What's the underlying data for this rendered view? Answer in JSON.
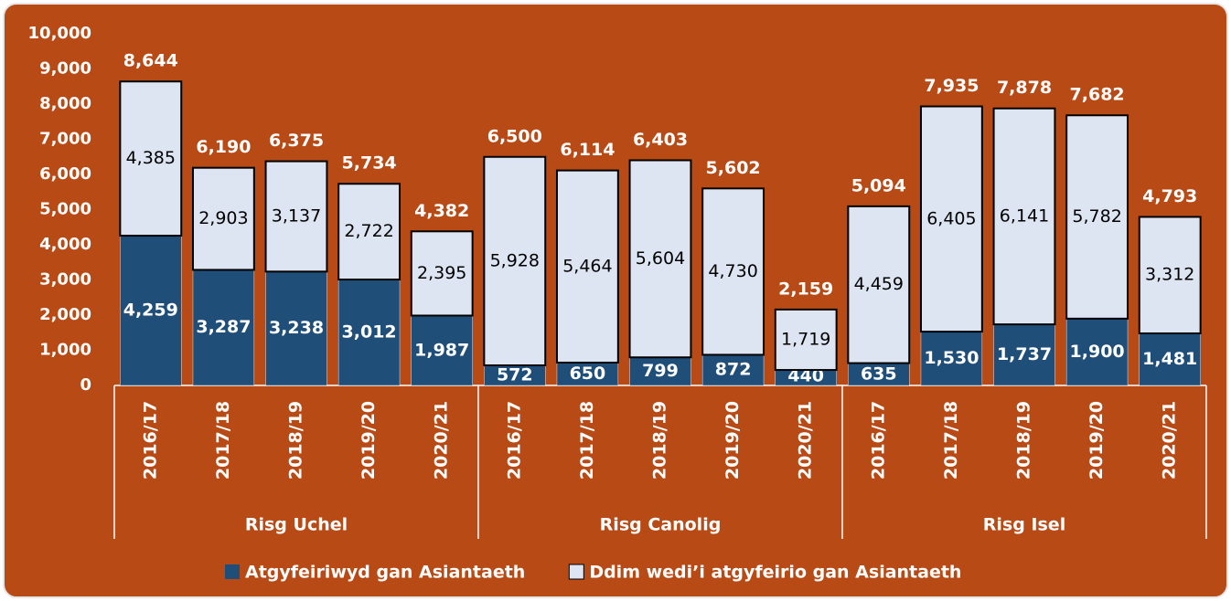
{
  "chart_data": {
    "type": "stacked-bar",
    "groups": [
      {
        "name": "Risg Uchel",
        "categories": [
          "2016/17",
          "2017/18",
          "2018/19",
          "2019/20",
          "2020/21"
        ]
      },
      {
        "name": "Risg Canolig",
        "categories": [
          "2016/17",
          "2017/18",
          "2018/19",
          "2019/20",
          "2020/21"
        ]
      },
      {
        "name": "Risg Isel",
        "categories": [
          "2016/17",
          "2017/18",
          "2018/19",
          "2019/20",
          "2020/21"
        ]
      }
    ],
    "series": [
      {
        "name": "Atgyfeiriwyd gan Asiantaeth",
        "color": "#1f4e79",
        "values": [
          4259,
          3287,
          3238,
          3012,
          1987,
          572,
          650,
          799,
          872,
          440,
          635,
          1530,
          1737,
          1900,
          1481
        ],
        "value_labels": [
          "4,259",
          "3,287",
          "3,238",
          "3,012",
          "1,987",
          "572",
          "650",
          "799",
          "872",
          "440",
          "635",
          "1,530",
          "1,737",
          "1,900",
          "1,481"
        ]
      },
      {
        "name": "Ddim wedi’i atgyfeirio gan Asiantaeth",
        "color": "#dde5f2",
        "values": [
          4385,
          2903,
          3137,
          2722,
          2395,
          5928,
          5464,
          5604,
          4730,
          1719,
          4459,
          6405,
          6141,
          5782,
          3312
        ],
        "value_labels": [
          "4,385",
          "2,903",
          "3,137",
          "2,722",
          "2,395",
          "5,928",
          "5,464",
          "5,604",
          "4,730",
          "1,719",
          "4,459",
          "6,405",
          "6,141",
          "5,782",
          "3,312"
        ]
      }
    ],
    "totals": [
      8644,
      6190,
      6375,
      5734,
      4382,
      6500,
      6114,
      6403,
      5602,
      2159,
      5094,
      7935,
      7878,
      7682,
      4793
    ],
    "total_labels": [
      "8,644",
      "6,190",
      "6,375",
      "5,734",
      "4,382",
      "6,500",
      "6,114",
      "6,403",
      "5,602",
      "2,159",
      "5,094",
      "7,935",
      "7,878",
      "7,682",
      "4,793"
    ],
    "ylim": [
      0,
      10000
    ],
    "yticks": [
      0,
      {
        "value": 1000,
        "label": "1,000"
      },
      {
        "value": 2000,
        "label": "2,000"
      },
      {
        "value": 3000,
        "label": "3,000"
      },
      {
        "value": 4000,
        "label": "4,000"
      },
      {
        "value": 5000,
        "label": "5,000"
      },
      {
        "value": 6000,
        "label": "6,000"
      },
      {
        "value": 7000,
        "label": "7,000"
      },
      {
        "value": 8000,
        "label": "8,000"
      },
      {
        "value": 9000,
        "label": "9,000"
      },
      {
        "value": 10000,
        "label": "10,000"
      }
    ],
    "legend": "bottom"
  }
}
